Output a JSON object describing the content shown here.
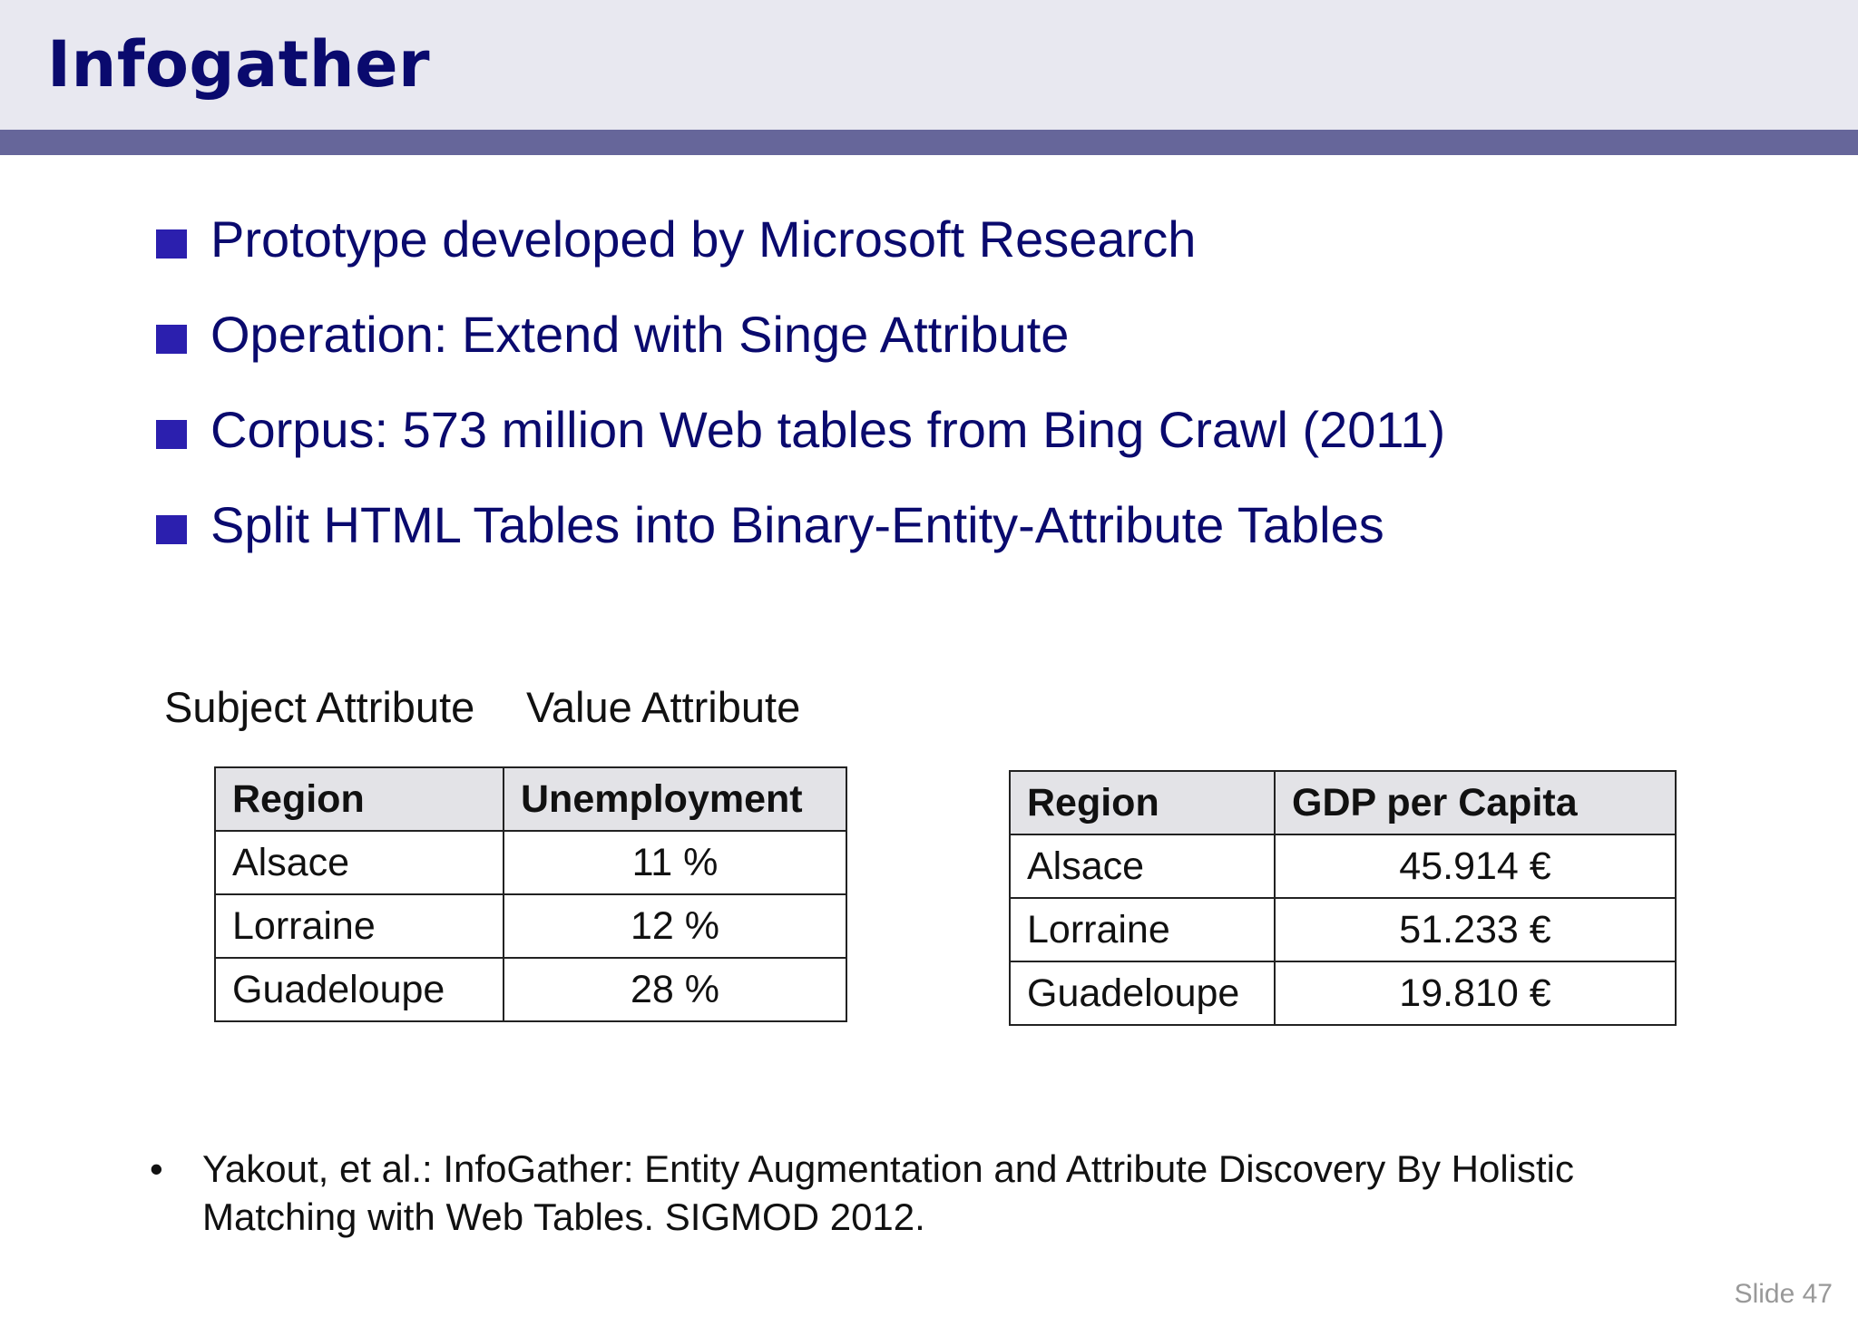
{
  "slide": {
    "title": "Infogather",
    "bullets": [
      "Prototype developed by Microsoft Research",
      "Operation: Extend with Singe Attribute",
      "Corpus: 573 million Web tables from Bing Crawl (2011)",
      "Split HTML Tables into Binary-Entity-Attribute Tables"
    ],
    "labels": {
      "subject": "Subject Attribute",
      "value": "Value Attribute"
    },
    "table1": {
      "headers": [
        "Region",
        "Unemployment"
      ],
      "rows": [
        [
          "Alsace",
          "11 %"
        ],
        [
          "Lorraine",
          "12 %"
        ],
        [
          "Guadeloupe",
          "28 %"
        ]
      ]
    },
    "table2": {
      "headers": [
        "Region",
        "GDP per Capita"
      ],
      "rows": [
        [
          "Alsace",
          "45.914 €"
        ],
        [
          "Lorraine",
          "51.233 €"
        ],
        [
          "Guadeloupe",
          "19.810 €"
        ]
      ]
    },
    "reference": {
      "bullet": "•",
      "line1": "Yakout, et al.: InfoGather: Entity Augmentation and Attribute Discovery By Holistic",
      "line2": "Matching with Web Tables. SIGMOD 2012."
    },
    "slide_number": "Slide 47"
  },
  "colors": {
    "title": "#0a0a6e",
    "header_background": "#e8e8f0",
    "header_bar": "#66669a",
    "bullet_square": "#2b1fae",
    "table_header_background": "#e3e3e7"
  }
}
